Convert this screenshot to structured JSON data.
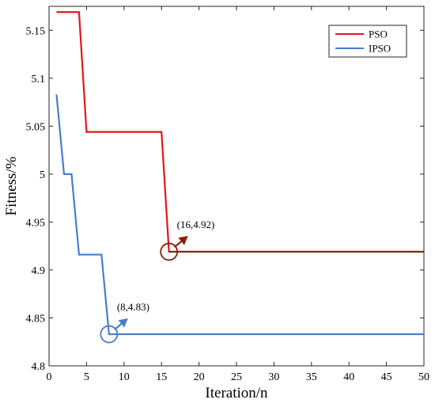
{
  "chart_data": {
    "type": "line",
    "xlabel": "Iteration/n",
    "ylabel": "Fitness/%",
    "xlim": [
      0,
      50
    ],
    "ylim": [
      4.8,
      5.175
    ],
    "xticks": [
      0,
      5,
      10,
      15,
      20,
      25,
      30,
      35,
      40,
      45,
      50
    ],
    "xtick_labels": [
      "0",
      "5",
      "10",
      "15",
      "20",
      "25",
      "30",
      "35",
      "40",
      "45",
      "50"
    ],
    "yticks": [
      4.8,
      4.85,
      4.9,
      4.95,
      5.0,
      5.05,
      5.1,
      5.15
    ],
    "ytick_labels": [
      "4.8",
      "4.85",
      "4.9",
      "4.95",
      "5",
      "5.05",
      "5.1",
      "5.15"
    ],
    "grid": false,
    "legend_position": "top-right",
    "series": [
      {
        "name": "PSO",
        "color": "#e3161b",
        "tail_color": "#7a2a10",
        "x": [
          1,
          4,
          5,
          15,
          16,
          50
        ],
        "y": [
          5.169,
          5.169,
          5.044,
          5.044,
          4.919,
          4.919
        ]
      },
      {
        "name": "IPSO",
        "color": "#4a7cc9",
        "x": [
          1,
          2,
          3,
          4,
          7,
          8,
          50
        ],
        "y": [
          5.083,
          5.0,
          5.0,
          4.916,
          4.916,
          4.833,
          4.833
        ]
      }
    ],
    "annotations": [
      {
        "text": "(16,4.92)",
        "x": 16,
        "y": 4.919,
        "color": "#8b1e0a"
      },
      {
        "text": "(8,4.83)",
        "x": 8,
        "y": 4.833,
        "color": "#4a7cc9"
      }
    ]
  }
}
